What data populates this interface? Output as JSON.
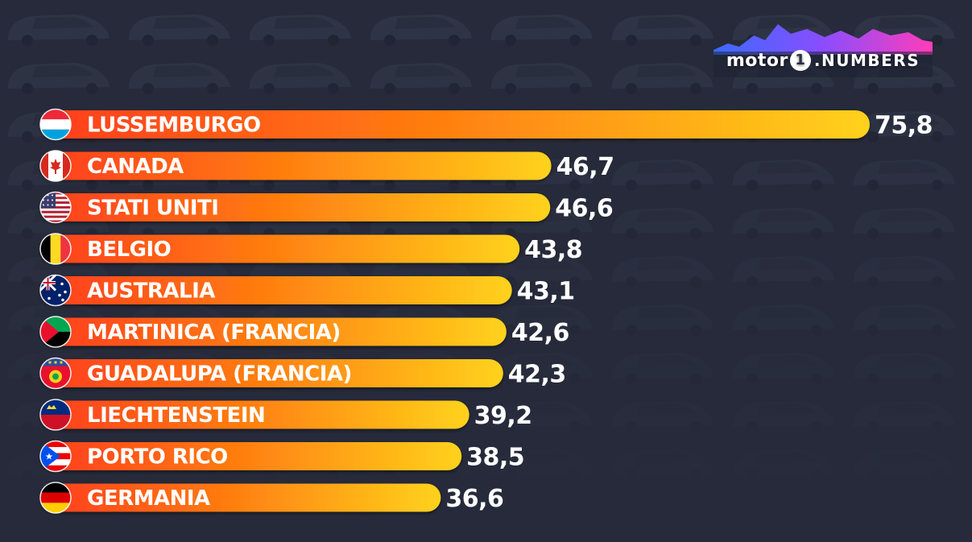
{
  "logo": {
    "part1": "motor",
    "part2": "1",
    "part3": ".NUMBERS"
  },
  "colors": {
    "bar_start": "#ff3d1f",
    "bar_mid": "#ff7a10",
    "bar_end": "#ffd21c",
    "background": "#262a3a",
    "text": "#ffffff"
  },
  "chart_data": {
    "type": "bar",
    "orientation": "horizontal",
    "categories": [
      "LUSSEMBURGO",
      "CANADA",
      "STATI UNITI",
      "BELGIO",
      "AUSTRALIA",
      "MARTINICA (FRANCIA)",
      "GUADALUPA (FRANCIA)",
      "LIECHTENSTEIN",
      "PORTO RICO",
      "GERMANIA"
    ],
    "values": [
      75.8,
      46.7,
      46.6,
      43.8,
      43.1,
      42.6,
      42.3,
      39.2,
      38.5,
      36.6
    ],
    "value_labels": [
      "75,8",
      "46,7",
      "46,6",
      "43,8",
      "43,1",
      "42,6",
      "42,3",
      "39,2",
      "38,5",
      "36,6"
    ],
    "flags": [
      "luxembourg-flag-icon",
      "canada-flag-icon",
      "usa-flag-icon",
      "belgium-flag-icon",
      "australia-flag-icon",
      "martinique-flag-icon",
      "guadeloupe-flag-icon",
      "liechtenstein-flag-icon",
      "puerto-rico-flag-icon",
      "germany-flag-icon"
    ],
    "grid": false,
    "legend": "none"
  }
}
